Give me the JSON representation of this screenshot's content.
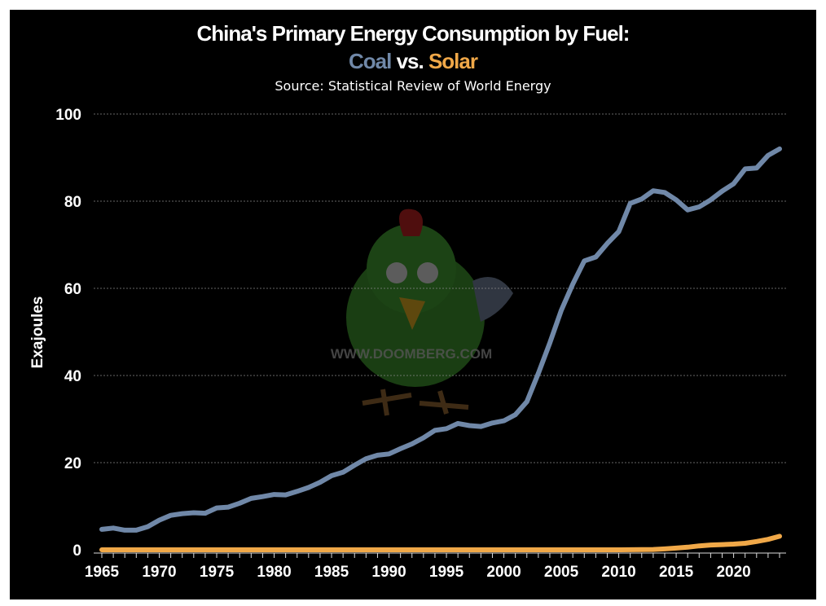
{
  "chart_data": {
    "type": "line",
    "title": "China's Primary Energy Consumption by Fuel:",
    "subtitle_parts": [
      {
        "text": "Coal",
        "color": "#7088a8"
      },
      {
        "text": " vs. ",
        "color": "#ffffff"
      },
      {
        "text": "Solar",
        "color": "#f0a848"
      }
    ],
    "source": "Source: Statistical Review of World Energy",
    "xlabel": "",
    "ylabel": "Exajoules",
    "xlim": [
      1965,
      2024
    ],
    "ylim": [
      0,
      100
    ],
    "xticks": [
      1965,
      1970,
      1975,
      1980,
      1985,
      1990,
      1995,
      2000,
      2005,
      2010,
      2015,
      2020
    ],
    "yticks": [
      0,
      20,
      40,
      60,
      80,
      100
    ],
    "grid": "horizontal dotted",
    "legend": "none (colored words in subtitle)",
    "background": "#000000",
    "x": [
      1965,
      1966,
      1967,
      1968,
      1969,
      1970,
      1971,
      1972,
      1973,
      1974,
      1975,
      1976,
      1977,
      1978,
      1979,
      1980,
      1981,
      1982,
      1983,
      1984,
      1985,
      1986,
      1987,
      1988,
      1989,
      1990,
      1991,
      1992,
      1993,
      1994,
      1995,
      1996,
      1997,
      1998,
      1999,
      2000,
      2001,
      2002,
      2003,
      2004,
      2005,
      2006,
      2007,
      2008,
      2009,
      2010,
      2011,
      2012,
      2013,
      2014,
      2015,
      2016,
      2017,
      2018,
      2019,
      2020,
      2021,
      2022,
      2023,
      2024
    ],
    "series": [
      {
        "name": "Coal",
        "color": "#7088a8",
        "values": [
          4.7,
          5.0,
          4.5,
          4.5,
          5.3,
          6.8,
          7.9,
          8.3,
          8.5,
          8.4,
          9.6,
          9.8,
          10.7,
          11.8,
          12.2,
          12.7,
          12.6,
          13.4,
          14.3,
          15.5,
          17.0,
          17.8,
          19.4,
          20.9,
          21.7,
          22.0,
          23.2,
          24.3,
          25.7,
          27.4,
          27.8,
          29.0,
          28.5,
          28.3,
          29.1,
          29.6,
          31.0,
          34.0,
          40.5,
          47.5,
          55.0,
          61.0,
          66.3,
          67.2,
          70.3,
          73.0,
          79.5,
          80.5,
          82.4,
          82.0,
          80.3,
          78.0,
          78.7,
          80.3,
          82.3,
          84.0,
          87.4,
          87.6,
          90.5,
          92.0
        ]
      },
      {
        "name": "Solar",
        "color": "#f0a848",
        "values": [
          0,
          0,
          0,
          0,
          0,
          0,
          0,
          0,
          0,
          0,
          0,
          0,
          0,
          0,
          0,
          0,
          0,
          0,
          0,
          0,
          0,
          0,
          0,
          0,
          0,
          0,
          0,
          0,
          0,
          0,
          0,
          0,
          0,
          0,
          0,
          0,
          0,
          0,
          0,
          0,
          0,
          0,
          0,
          0,
          0,
          0,
          0.01,
          0.03,
          0.08,
          0.2,
          0.4,
          0.6,
          0.9,
          1.1,
          1.2,
          1.3,
          1.5,
          1.9,
          2.4,
          3.1
        ]
      }
    ]
  },
  "watermark": {
    "text": "WWW.DOOMBERG.COM",
    "logo": "green-chicken-logo"
  }
}
